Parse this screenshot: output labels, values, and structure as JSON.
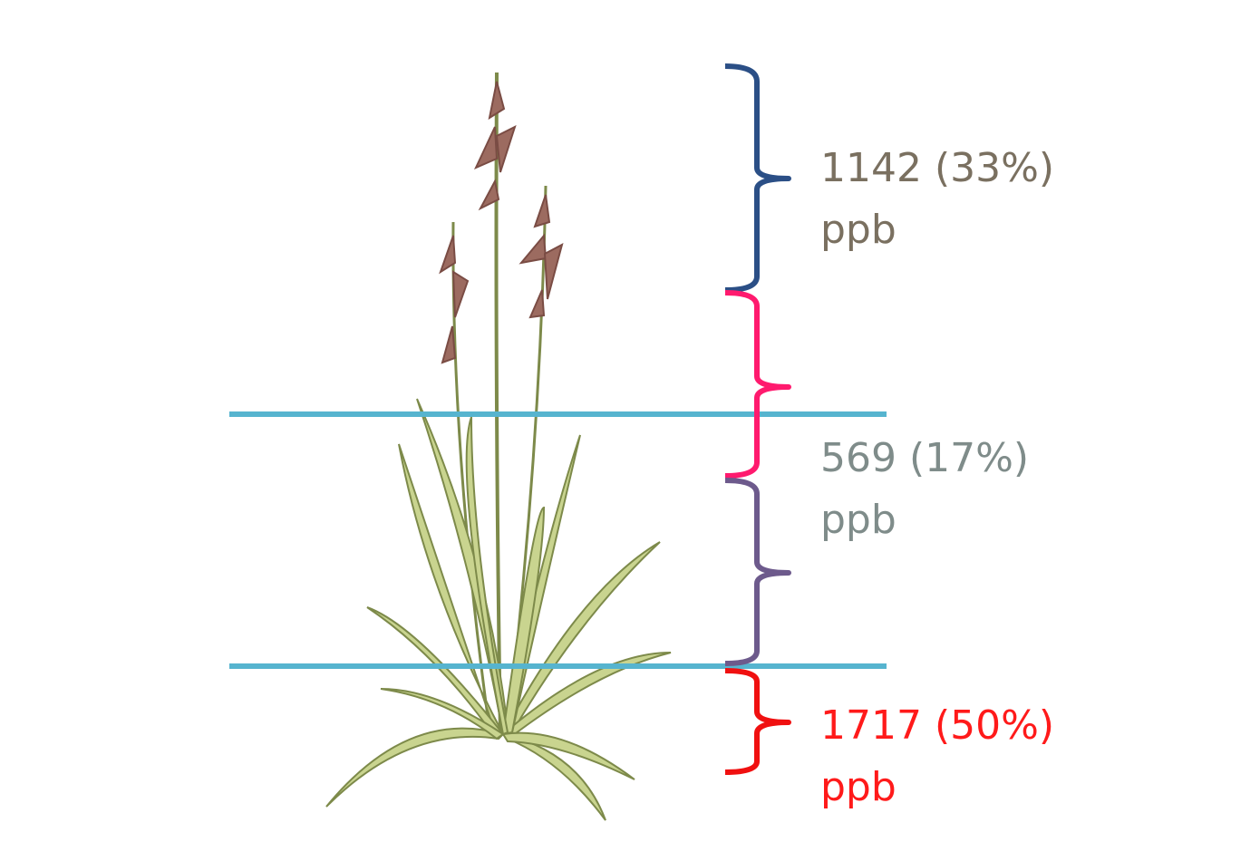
{
  "labels": [
    {
      "amount": "1142 (33%)",
      "unit": "ppb"
    },
    {
      "amount": "569 (17%)",
      "unit": "ppb"
    },
    {
      "amount": "1717 (50%)",
      "unit": "ppb"
    }
  ]
}
